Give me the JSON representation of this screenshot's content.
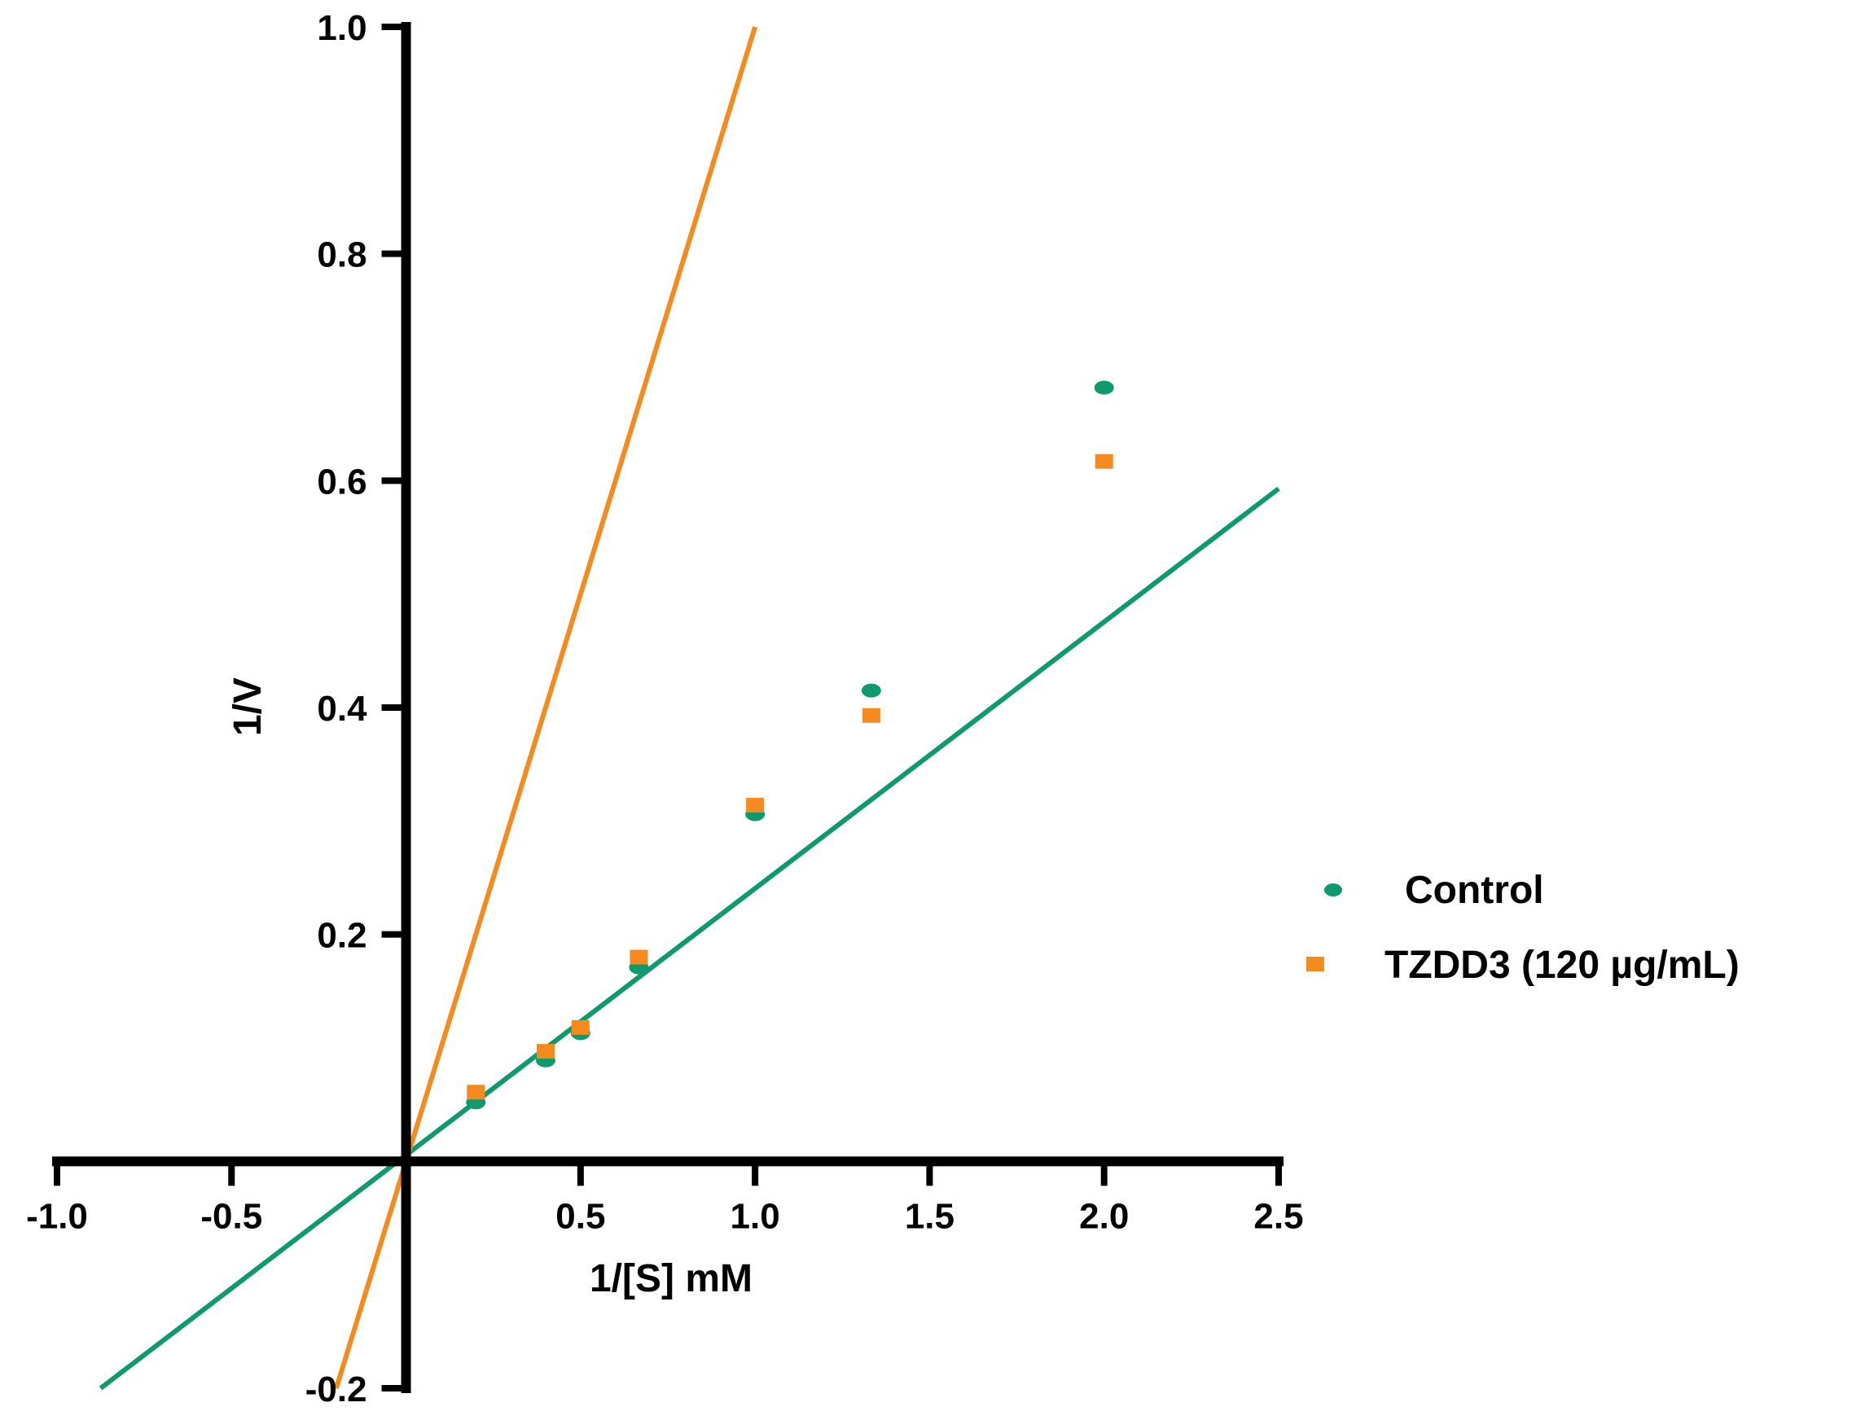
{
  "chart_data": {
    "type": "scatter",
    "title": "",
    "xlabel": "1/[S] mM",
    "ylabel": "1/V",
    "xlim": [
      -1.0,
      2.5
    ],
    "ylim": [
      -0.2,
      1.0
    ],
    "x_ticks": [
      -1.0,
      -0.5,
      0.5,
      1.0,
      1.5,
      2.0,
      2.5
    ],
    "x_tick_labels": [
      "-1.0",
      "-0.5",
      "0.5",
      "1.0",
      "1.5",
      "2.0",
      "2.5"
    ],
    "y_ticks": [
      -0.2,
      0.2,
      0.4,
      0.6,
      0.8,
      1.0
    ],
    "y_tick_labels": [
      "-0.2",
      "0.2",
      "0.4",
      "0.6",
      "0.8",
      "1.0"
    ],
    "legend_position": "right",
    "series": [
      {
        "name": "Control",
        "color": "#0e9a6c",
        "marker": "circle",
        "x": [
          0.2,
          0.4,
          0.5,
          0.667,
          1.0,
          1.333,
          2.0
        ],
        "y": [
          0.052,
          0.089,
          0.113,
          0.171,
          0.306,
          0.415,
          0.682
        ],
        "fit_line": {
          "x": [
            -0.875,
            2.5
          ],
          "y": [
            -0.2,
            0.593
          ]
        }
      },
      {
        "name": "TZDD3 (120 µg/mL)",
        "color": "#f58a1f",
        "marker": "square",
        "x": [
          0.2,
          0.4,
          0.5,
          0.667,
          1.0,
          1.333,
          2.0
        ],
        "y": [
          0.061,
          0.097,
          0.118,
          0.18,
          0.314,
          0.393,
          0.617
        ],
        "fit_line": {
          "x": [
            -0.2,
            1.0
          ],
          "y": [
            -0.2,
            1.0
          ]
        }
      }
    ]
  }
}
